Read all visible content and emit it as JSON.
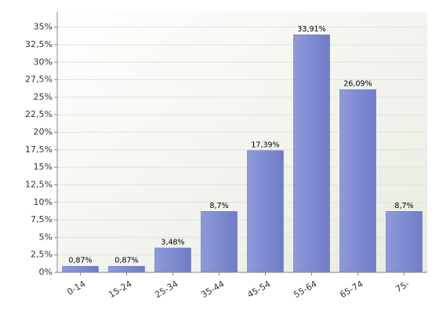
{
  "chart_data": {
    "type": "bar",
    "categories": [
      "0-14",
      "15-24",
      "25-34",
      "35-44",
      "45-54",
      "55-64",
      "65-74",
      "75-"
    ],
    "values": [
      0.87,
      0.87,
      3.48,
      8.7,
      17.39,
      33.91,
      26.09,
      8.7
    ],
    "value_labels": [
      "0,87%",
      "0,87%",
      "3,48%",
      "8,7%",
      "17,39%",
      "33,91%",
      "26,09%",
      "8,7%"
    ],
    "color": "#7b88d0",
    "ylim": [
      0,
      37.2
    ],
    "yticks": [
      {
        "value": 0,
        "label": "0%"
      },
      {
        "value": 2.5,
        "label": "2,5%"
      },
      {
        "value": 5,
        "label": "5%"
      },
      {
        "value": 7.5,
        "label": "7,5%"
      },
      {
        "value": 10,
        "label": "10%"
      },
      {
        "value": 12.5,
        "label": "12,5%"
      },
      {
        "value": 15,
        "label": "15%"
      },
      {
        "value": 17.5,
        "label": "17,5%"
      },
      {
        "value": 20,
        "label": "20%"
      },
      {
        "value": 22.5,
        "label": "22,5%"
      },
      {
        "value": 25,
        "label": "25%"
      },
      {
        "value": 27.5,
        "label": "27,5%"
      },
      {
        "value": 30,
        "label": "30%"
      },
      {
        "value": 32.5,
        "label": "32,5%"
      },
      {
        "value": 35,
        "label": "35%"
      }
    ],
    "grid": true
  }
}
